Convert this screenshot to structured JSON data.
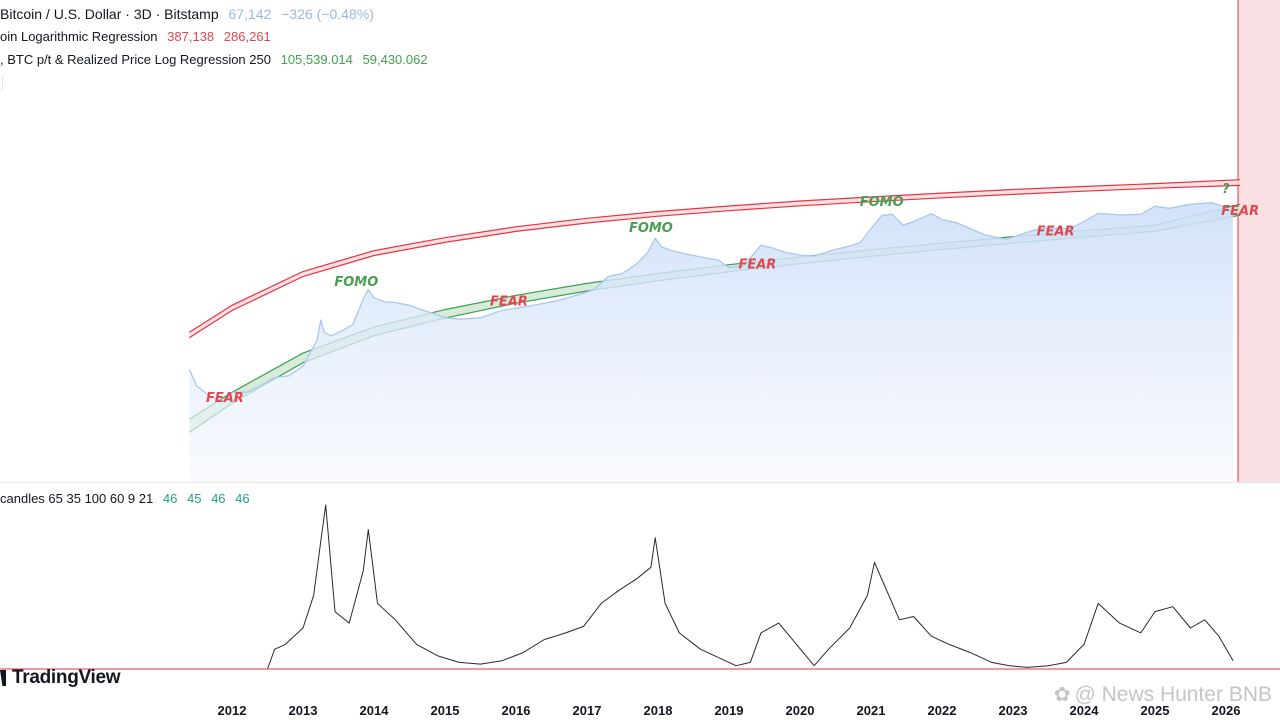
{
  "legend": {
    "symbol": {
      "title": "Bitcoin / U.S. Dollar · 3D · Bitstamp",
      "price": "67,142",
      "change": "−326 (−0.48%)"
    },
    "regression": {
      "title": "oin Logarithmic Regression",
      "value_1": "387,138",
      "value_2": "286,261"
    },
    "ratio": {
      "title": ", BTC p/t & Realized Price Log Regression 250",
      "value_1": "105,539.014",
      "value_2": "59,430.062"
    },
    "oscillator": {
      "title": "candles 65 35 100 60 9 21",
      "values": [
        "46",
        "45",
        "46",
        "46"
      ]
    }
  },
  "branding": {
    "logo_text": "TradingView",
    "watermark_text": "@ News Hunter BNB"
  },
  "colors": {
    "price": "#a9c7f0",
    "price_fill": "#dce8fb",
    "upper_band": "#e8333f",
    "upper_fill": "#fadcdf",
    "lower_band": "#3f9f4f",
    "lower_fill": "#cfe8d4",
    "oscillator": "#2a2a2a",
    "fomo_text": "#4a9e52",
    "fear_text": "#e0474f",
    "current_zone": "#fbe0e3"
  },
  "chart_data": {
    "type": "line",
    "scale": "log",
    "x_unit": "year",
    "x_ticks": [
      "2012",
      "2013",
      "2014",
      "2015",
      "2016",
      "2017",
      "2018",
      "2019",
      "2020",
      "2021",
      "2022",
      "2023",
      "2024",
      "2025",
      "2026"
    ],
    "price_series": {
      "x": [
        2011.4,
        2011.5,
        2011.7,
        2011.9,
        2012.0,
        2012.2,
        2012.4,
        2012.6,
        2012.8,
        2013.0,
        2013.2,
        2013.25,
        2013.3,
        2013.4,
        2013.55,
        2013.7,
        2013.85,
        2013.92,
        2014.0,
        2014.15,
        2014.3,
        2014.5,
        2014.7,
        2014.85,
        2015.0,
        2015.2,
        2015.5,
        2015.8,
        2016.0,
        2016.3,
        2016.6,
        2016.9,
        2017.1,
        2017.3,
        2017.5,
        2017.7,
        2017.85,
        2017.96,
        2018.05,
        2018.2,
        2018.4,
        2018.6,
        2018.85,
        2019.0,
        2019.2,
        2019.45,
        2019.6,
        2019.8,
        2020.0,
        2020.2,
        2020.45,
        2020.7,
        2020.85,
        2021.0,
        2021.15,
        2021.3,
        2021.45,
        2021.6,
        2021.85,
        2022.0,
        2022.2,
        2022.4,
        2022.6,
        2022.9,
        2023.1,
        2023.3,
        2023.5,
        2023.8,
        2024.0,
        2024.2,
        2024.5,
        2024.8,
        2025.0,
        2025.2,
        2025.5,
        2025.8,
        2025.95,
        2026.1
      ],
      "y": [
        17,
        7,
        4,
        3,
        5,
        5,
        7,
        11,
        12,
        20,
        80,
        230,
        120,
        100,
        130,
        180,
        700,
        1150,
        750,
        600,
        580,
        500,
        380,
        320,
        260,
        240,
        260,
        380,
        430,
        520,
        650,
        900,
        1150,
        2300,
        2700,
        4500,
        8000,
        17500,
        11000,
        9000,
        7500,
        6500,
        5500,
        3700,
        4000,
        12000,
        10500,
        8200,
        7200,
        6800,
        9200,
        11500,
        14000,
        29000,
        58000,
        62000,
        35000,
        42000,
        64000,
        47000,
        40000,
        29000,
        21000,
        16500,
        21000,
        27000,
        30000,
        29000,
        42000,
        65000,
        60000,
        62000,
        95000,
        85000,
        105000,
        115000,
        95000,
        67142
      ]
    },
    "upper_band": {
      "x": [
        2011.4,
        2012.0,
        2013.0,
        2014.0,
        2015.0,
        2016.0,
        2017.0,
        2018.0,
        2019.0,
        2020.0,
        2021.0,
        2022.0,
        2023.0,
        2024.0,
        2025.0,
        2026.2
      ],
      "upper": [
        120,
        500,
        3000,
        9000,
        18000,
        32000,
        50000,
        72000,
        96000,
        125000,
        155000,
        190000,
        230000,
        270000,
        315000,
        387138
      ],
      "lower": [
        90,
        380,
        2300,
        7000,
        14000,
        25000,
        39000,
        56000,
        75000,
        97000,
        121000,
        148000,
        178000,
        210000,
        246000,
        286261
      ]
    },
    "lower_band": {
      "x": [
        2011.4,
        2012.0,
        2013.0,
        2014.0,
        2015.0,
        2016.0,
        2017.0,
        2018.0,
        2019.0,
        2020.0,
        2021.0,
        2022.0,
        2023.0,
        2024.0,
        2025.0,
        2026.2
      ],
      "upper": [
        1.2,
        5,
        40,
        160,
        400,
        850,
        1600,
        2700,
        4300,
        6500,
        9500,
        13500,
        19000,
        26000,
        35000,
        105539.014
      ],
      "lower": [
        0.6,
        2.8,
        24,
        100,
        255,
        560,
        1070,
        1830,
        2950,
        4500,
        6700,
        9600,
        13500,
        18500,
        25000,
        59430.062
      ]
    },
    "annotations": [
      {
        "text": "FEAR",
        "kind": "fear",
        "x": 2011.9,
        "y": 3
      },
      {
        "text": "FOMO",
        "kind": "fomo",
        "x": 2013.75,
        "y": 1400
      },
      {
        "text": "FEAR",
        "kind": "fear",
        "x": 2015.9,
        "y": 500
      },
      {
        "text": "FOMO",
        "kind": "fomo",
        "x": 2017.9,
        "y": 24000
      },
      {
        "text": "FEAR",
        "kind": "fear",
        "x": 2019.4,
        "y": 3500
      },
      {
        "text": "FOMO",
        "kind": "fomo",
        "x": 2021.15,
        "y": 95000
      },
      {
        "text": "FEAR",
        "kind": "fear",
        "x": 2023.6,
        "y": 20000
      },
      {
        "text": "?",
        "kind": "fomo",
        "x": 2026.0,
        "y": 190000
      },
      {
        "text": "FEAR",
        "kind": "fear",
        "x": 2026.2,
        "y": 60000
      }
    ],
    "oscillator": {
      "x": [
        2012.5,
        2012.6,
        2012.75,
        2013.0,
        2013.15,
        2013.25,
        2013.32,
        2013.45,
        2013.65,
        2013.85,
        2013.92,
        2014.05,
        2014.3,
        2014.6,
        2014.9,
        2015.2,
        2015.5,
        2015.8,
        2016.1,
        2016.4,
        2016.7,
        2016.95,
        2017.2,
        2017.45,
        2017.7,
        2017.9,
        2017.96,
        2018.1,
        2018.3,
        2018.6,
        2018.9,
        2019.1,
        2019.3,
        2019.45,
        2019.7,
        2019.95,
        2020.2,
        2020.4,
        2020.7,
        2020.95,
        2021.05,
        2021.2,
        2021.4,
        2021.6,
        2021.85,
        2022.1,
        2022.4,
        2022.7,
        2022.95,
        2023.2,
        2023.5,
        2023.75,
        2024.0,
        2024.2,
        2024.5,
        2024.8,
        2025.0,
        2025.25,
        2025.5,
        2025.7,
        2025.9,
        2026.1
      ],
      "y": [
        0,
        12,
        15,
        25,
        45,
        78,
        100,
        35,
        28,
        60,
        85,
        40,
        30,
        15,
        8,
        4,
        3,
        5,
        10,
        18,
        22,
        26,
        40,
        48,
        55,
        62,
        80,
        40,
        22,
        12,
        6,
        2,
        4,
        22,
        28,
        15,
        2,
        12,
        25,
        45,
        65,
        50,
        30,
        32,
        20,
        15,
        10,
        4,
        2,
        1,
        2,
        4,
        15,
        40,
        28,
        22,
        35,
        38,
        25,
        30,
        20,
        5
      ]
    }
  }
}
